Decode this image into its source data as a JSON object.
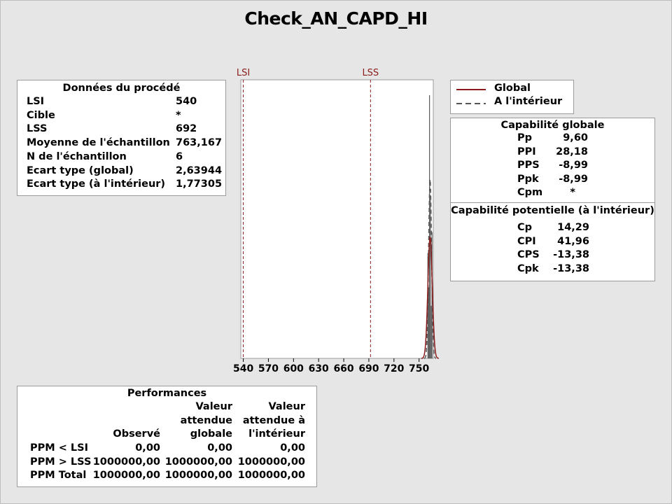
{
  "title": "Check_AN_CAPD_HI",
  "process_data": {
    "header": "Données du procédé",
    "rows": [
      {
        "label": "LSI",
        "value": "540"
      },
      {
        "label": "Cible",
        "value": "*"
      },
      {
        "label": "LSS",
        "value": "692"
      },
      {
        "label": "Moyenne de l'échantillon",
        "value": "763,167"
      },
      {
        "label": "N de l'échantillon",
        "value": "6"
      },
      {
        "label": "Ecart type (global)",
        "value": "2,63944"
      },
      {
        "label": "Ecart type (à l'intérieur)",
        "value": "1,77305"
      }
    ]
  },
  "legend": {
    "items": [
      {
        "label": "Global",
        "style": "solid",
        "color": "#8b1a1a"
      },
      {
        "label": "A l'intérieur",
        "style": "dashed",
        "color": "#555555"
      }
    ]
  },
  "overall_capability": {
    "header": "Capabilité globale",
    "rows": [
      {
        "label": "Pp",
        "value": "9,60"
      },
      {
        "label": "PPI",
        "value": "28,18"
      },
      {
        "label": "PPS",
        "value": "-8,99"
      },
      {
        "label": "Ppk",
        "value": "-8,99"
      },
      {
        "label": "Cpm",
        "value": "*"
      }
    ]
  },
  "potential_capability": {
    "header": "Capabilité potentielle (à l'intérieur)",
    "rows": [
      {
        "label": "Cp",
        "value": "14,29"
      },
      {
        "label": "CPI",
        "value": "41,96"
      },
      {
        "label": "CPS",
        "value": "-13,38"
      },
      {
        "label": "Cpk",
        "value": "-13,38"
      }
    ]
  },
  "performance": {
    "header": "Performances",
    "columns": [
      "Observé",
      "Valeur attendue globale",
      "Valeur attendue à l'intérieur"
    ],
    "column_lines": [
      [
        "",
        "",
        "Observé"
      ],
      [
        "Valeur",
        "attendue",
        "globale"
      ],
      [
        "Valeur",
        "attendue à",
        "l'intérieur"
      ]
    ],
    "rows": [
      {
        "label": "PPM < LSI",
        "values": [
          "0,00",
          "0,00",
          "0,00"
        ]
      },
      {
        "label": "PPM > LSS",
        "values": [
          "1000000,00",
          "1000000,00",
          "1000000,00"
        ]
      },
      {
        "label": "PPM Total",
        "values": [
          "1000000,00",
          "1000000,00",
          "1000000,00"
        ]
      }
    ]
  },
  "chart_data": {
    "type": "bar",
    "xlim": [
      537,
      767
    ],
    "x_ticks": [
      540,
      570,
      600,
      630,
      660,
      690,
      720,
      750
    ],
    "spec_lines": [
      {
        "label": "LSI",
        "x": 540,
        "color": "#8b1a1a"
      },
      {
        "label": "LSS",
        "x": 692,
        "color": "#8b1a1a"
      }
    ],
    "histogram": {
      "bins": [
        {
          "x": 760.5,
          "count": 0.4
        },
        {
          "x": 761.5,
          "count": 0.27
        },
        {
          "x": 762.5,
          "count": 1.0
        },
        {
          "x": 763.5,
          "count": 0.62
        },
        {
          "x": 764.5,
          "count": 0.2
        },
        {
          "x": 765.5,
          "count": 0.48
        }
      ]
    },
    "mean": 763.167,
    "sd_overall": 2.63944,
    "sd_within": 1.77305,
    "series": [
      {
        "name": "Global",
        "style": "solid",
        "color": "#8b1a1a"
      },
      {
        "name": "A l'intérieur",
        "style": "dashed",
        "color": "#555555"
      }
    ]
  }
}
